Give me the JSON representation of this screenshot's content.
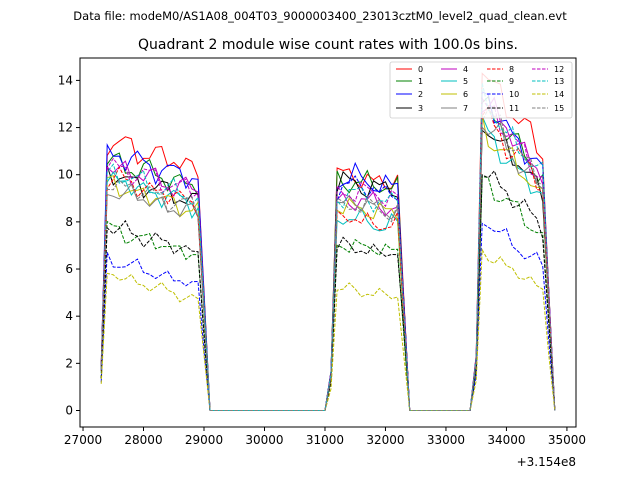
{
  "chart_data": {
    "type": "line",
    "suptitle": "Data file: modeM0/AS1A08_004T03_9000003400_23013cztM0_level2_quad_clean.evt",
    "title": "Quadrant 2 module wise count rates with 100.0s bins.",
    "xlabel": "",
    "ylabel": "",
    "x_offset_label": "+3.154e8",
    "xlim": [
      26950,
      35150
    ],
    "ylim": [
      -0.7,
      14.95
    ],
    "xticks": [
      27000,
      28000,
      29000,
      30000,
      31000,
      32000,
      33000,
      34000,
      35000
    ],
    "yticks": [
      0,
      2,
      4,
      6,
      8,
      10,
      12,
      14
    ],
    "grid": false,
    "legend_position": "top-right",
    "segments": [
      {
        "start": 27300,
        "end": 29000
      },
      {
        "start": 31100,
        "end": 32300
      },
      {
        "start": 33500,
        "end": 34700
      }
    ],
    "series": [
      {
        "name": "0",
        "color": "#ff0000",
        "style": "solid",
        "l1": 11.0,
        "l2": 9.8,
        "l3": 13.2
      },
      {
        "name": "1",
        "color": "#008000",
        "style": "solid",
        "l1": 10.2,
        "l2": 9.6,
        "l3": 12.0
      },
      {
        "name": "2",
        "color": "#0000ff",
        "style": "solid",
        "l1": 10.5,
        "l2": 9.7,
        "l3": 12.2
      },
      {
        "name": "3",
        "color": "#000000",
        "style": "solid",
        "l1": 9.6,
        "l2": 9.5,
        "l3": 11.2
      },
      {
        "name": "4",
        "color": "#bf00bf",
        "style": "solid",
        "l1": 10.0,
        "l2": 8.8,
        "l3": 12.1
      },
      {
        "name": "5",
        "color": "#00bfbf",
        "style": "solid",
        "l1": 9.4,
        "l2": 8.0,
        "l3": 10.9
      },
      {
        "name": "6",
        "color": "#bfbf00",
        "style": "solid",
        "l1": 9.2,
        "l2": 8.5,
        "l3": 11.0
      },
      {
        "name": "7",
        "color": "#808080",
        "style": "solid",
        "l1": 9.0,
        "l2": 8.7,
        "l3": 11.3
      },
      {
        "name": "8",
        "color": "#ff0000",
        "style": "dashed",
        "l1": 9.5,
        "l2": 8.0,
        "l3": 11.5
      },
      {
        "name": "9",
        "color": "#008000",
        "style": "dashed",
        "l1": 7.3,
        "l2": 6.9,
        "l3": 9.0
      },
      {
        "name": "10",
        "color": "#0000ff",
        "style": "dashed",
        "l1": 6.0,
        "l2": 9.4,
        "l3": 7.4
      },
      {
        "name": "11",
        "color": "#000000",
        "style": "dashed",
        "l1": 7.4,
        "l2": 6.8,
        "l3": 9.4
      },
      {
        "name": "12",
        "color": "#bf00bf",
        "style": "dashed",
        "l1": 10.0,
        "l2": 9.2,
        "l3": 12.0
      },
      {
        "name": "13",
        "color": "#00bfbf",
        "style": "dashed",
        "l1": 9.7,
        "l2": 9.0,
        "l3": 12.0
      },
      {
        "name": "14",
        "color": "#bfbf00",
        "style": "dashed",
        "l1": 5.4,
        "l2": 5.0,
        "l3": 6.2
      },
      {
        "name": "15",
        "color": "#808080",
        "style": "dashed",
        "l1": 9.3,
        "l2": 8.6,
        "l3": 11.8
      }
    ]
  }
}
